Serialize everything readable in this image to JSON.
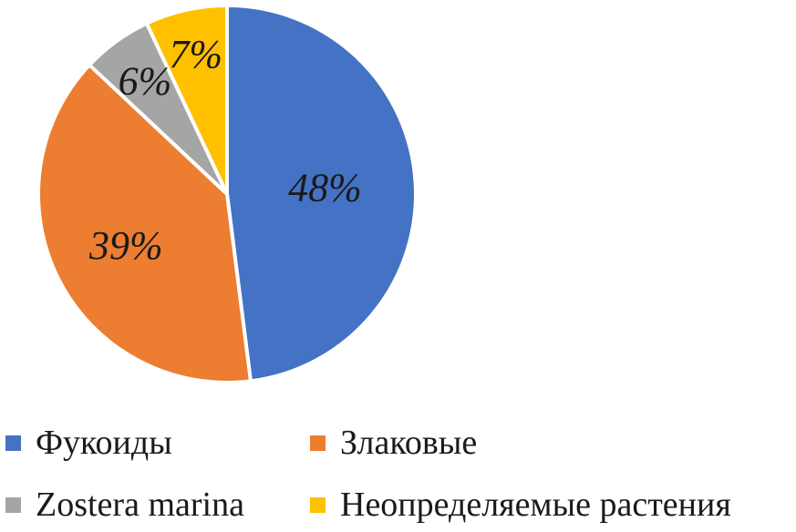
{
  "chart_data": {
    "type": "pie",
    "title": "",
    "slices": [
      {
        "name": "Фукоиды",
        "value": 48,
        "label": "48%",
        "color": "#4472C4"
      },
      {
        "name": "Злаковые",
        "value": 39,
        "label": "39%",
        "color": "#ED7D31"
      },
      {
        "name": "Zostera marina",
        "value": 6,
        "label": "6%",
        "color": "#A5A5A5"
      },
      {
        "name": "Неопределяемые растения",
        "value": 7,
        "label": "7%",
        "color": "#FFC000"
      }
    ],
    "start_angle": "12 o'clock",
    "direction": "clockwise",
    "legend_position": "bottom"
  }
}
